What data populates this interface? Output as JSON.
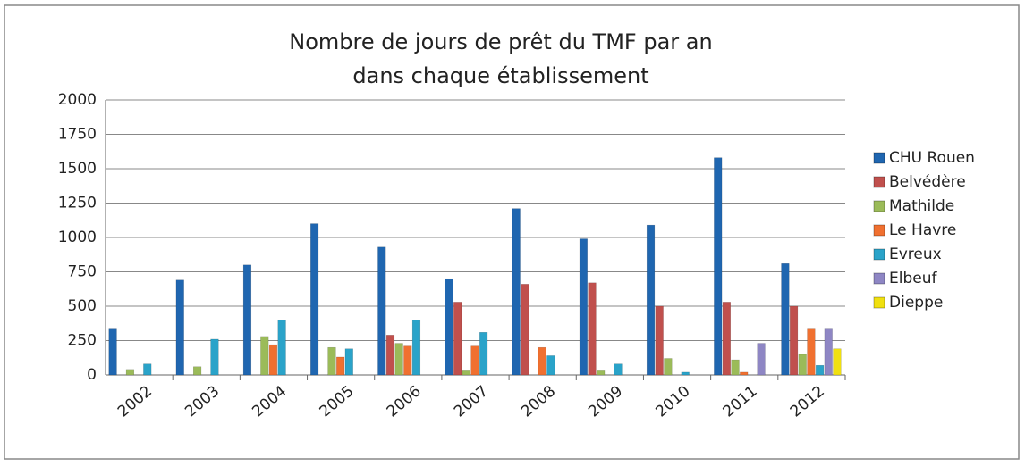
{
  "chart_data": {
    "type": "bar",
    "title": [
      "Nombre de jours de prêt du TMF par an",
      "dans chaque établissement"
    ],
    "categories": [
      "2002",
      "2003",
      "2004",
      "2005",
      "2006",
      "2007",
      "2008",
      "2009",
      "2010",
      "2011",
      "2012"
    ],
    "series": [
      {
        "name": "CHU Rouen",
        "color": "#1f66b0",
        "values": [
          340,
          690,
          800,
          1100,
          930,
          700,
          1210,
          990,
          1090,
          1580,
          810
        ]
      },
      {
        "name": "Belvédère",
        "color": "#c0504d",
        "values": [
          0,
          0,
          0,
          0,
          290,
          530,
          660,
          670,
          500,
          530,
          500
        ]
      },
      {
        "name": "Mathilde",
        "color": "#9bbb59",
        "values": [
          40,
          60,
          280,
          200,
          230,
          30,
          0,
          30,
          120,
          110,
          150
        ]
      },
      {
        "name": "Le Havre",
        "color": "#f07030",
        "values": [
          0,
          0,
          220,
          130,
          210,
          210,
          200,
          0,
          0,
          20,
          340
        ]
      },
      {
        "name": "Evreux",
        "color": "#2aa3c9",
        "values": [
          80,
          260,
          400,
          190,
          400,
          310,
          140,
          80,
          20,
          0,
          70
        ]
      },
      {
        "name": "Elbeuf",
        "color": "#8e86c4",
        "values": [
          0,
          0,
          0,
          0,
          0,
          0,
          0,
          0,
          0,
          230,
          340
        ]
      },
      {
        "name": "Dieppe",
        "color": "#f0e010",
        "values": [
          0,
          0,
          0,
          0,
          0,
          0,
          0,
          0,
          0,
          0,
          190
        ]
      }
    ],
    "ylim": [
      0,
      2000
    ],
    "yticks": [
      0,
      250,
      500,
      750,
      1000,
      1250,
      1500,
      1750,
      2000
    ],
    "grid": true,
    "legend": "right"
  }
}
